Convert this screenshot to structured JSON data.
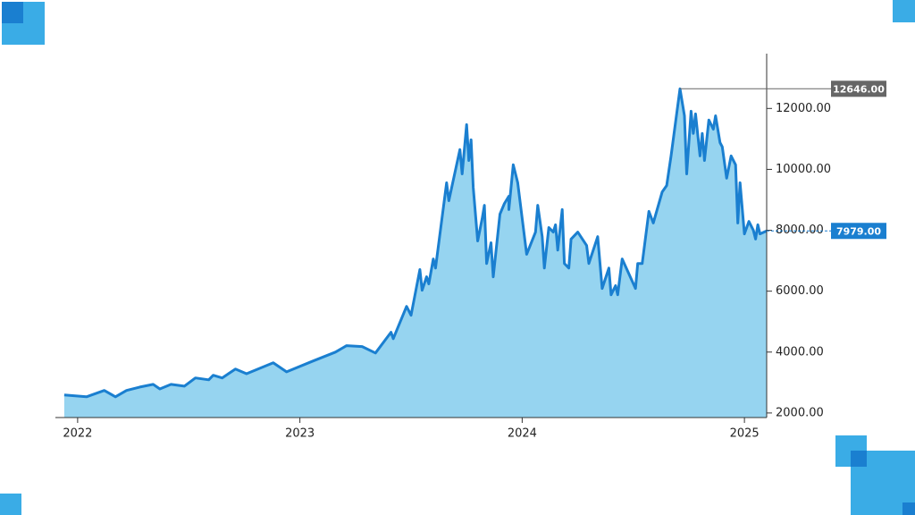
{
  "chart_data": {
    "type": "area",
    "x": [
      2021.94,
      2022.04,
      2022.12,
      2022.17,
      2022.22,
      2022.28,
      2022.34,
      2022.37,
      2022.42,
      2022.48,
      2022.53,
      2022.59,
      2022.61,
      2022.65,
      2022.71,
      2022.76,
      2022.88,
      2022.94,
      2023.06,
      2023.16,
      2023.21,
      2023.28,
      2023.34,
      2023.41,
      2023.42,
      2023.48,
      2023.5,
      2023.54,
      2023.55,
      2023.57,
      2023.58,
      2023.6,
      2023.61,
      2023.66,
      2023.67,
      2023.72,
      2023.73,
      2023.75,
      2023.76,
      2023.77,
      2023.78,
      2023.8,
      2023.82,
      2023.83,
      2023.84,
      2023.86,
      2023.87,
      2023.9,
      2023.92,
      2023.94,
      2023.94,
      2023.96,
      2023.98,
      2024.02,
      2024.06,
      2024.07,
      2024.09,
      2024.1,
      2024.12,
      2024.14,
      2024.15,
      2024.16,
      2024.18,
      2024.19,
      2024.21,
      2024.22,
      2024.25,
      2024.29,
      2024.3,
      2024.34,
      2024.36,
      2024.39,
      2024.4,
      2024.42,
      2024.43,
      2024.45,
      2024.51,
      2024.52,
      2024.54,
      2024.57,
      2024.59,
      2024.63,
      2024.65,
      2024.67,
      2024.71,
      2024.73,
      2024.74,
      2024.76,
      2024.77,
      2024.78,
      2024.8,
      2024.81,
      2024.82,
      2024.84,
      2024.86,
      2024.87,
      2024.89,
      2024.9,
      2024.92,
      2024.94,
      2024.96,
      2024.97,
      2024.98,
      2025.0,
      2025.02,
      2025.04,
      2025.05,
      2025.06,
      2025.07,
      2025.1
    ],
    "values": [
      2590,
      2530,
      2740,
      2530,
      2740,
      2850,
      2940,
      2790,
      2940,
      2880,
      3150,
      3090,
      3240,
      3150,
      3440,
      3290,
      3650,
      3350,
      3710,
      4000,
      4210,
      4180,
      3970,
      4650,
      4440,
      5500,
      5210,
      6710,
      6030,
      6470,
      6240,
      7060,
      6760,
      9560,
      8970,
      10650,
      9850,
      11470,
      10290,
      10970,
      9410,
      7650,
      8380,
      8820,
      6910,
      7590,
      6470,
      8530,
      8880,
      9120,
      8680,
      10150,
      9560,
      7210,
      7940,
      8820,
      7790,
      6760,
      8090,
      7940,
      8180,
      7350,
      8680,
      6910,
      6760,
      7710,
      7940,
      7500,
      6910,
      7790,
      6090,
      6760,
      5880,
      6180,
      5880,
      7060,
      6090,
      6910,
      6910,
      8620,
      8240,
      9260,
      9470,
      10440,
      12646,
      11760,
      9850,
      11910,
      11180,
      11820,
      10440,
      11180,
      10290,
      11620,
      11320,
      11760,
      10880,
      10740,
      9710,
      10440,
      10150,
      8240,
      9560,
      7880,
      8290,
      8000,
      7710,
      8180,
      7880,
      7979
    ],
    "color": "#1a7fd0",
    "fill_color": "#96d4f0",
    "xlim": [
      2021.9,
      2025.1
    ],
    "xticks": [
      2022,
      2023,
      2024,
      2025
    ],
    "ylim": [
      1850,
      13800
    ],
    "yticks": [
      {
        "value": 2000,
        "label": "2000.00"
      },
      {
        "value": 4000,
        "label": "4000.00"
      },
      {
        "value": 6000,
        "label": "6000.00"
      },
      {
        "value": 8000,
        "label": "8000.00"
      },
      {
        "value": 10000,
        "label": "10000.00"
      },
      {
        "value": 12000,
        "label": "12000.00"
      }
    ],
    "annotations": [
      {
        "value": 12646,
        "label": "12646.00",
        "color": "#666666"
      },
      {
        "value": 7979,
        "label": "7979.00",
        "color": "#1a7fd0"
      }
    ]
  }
}
